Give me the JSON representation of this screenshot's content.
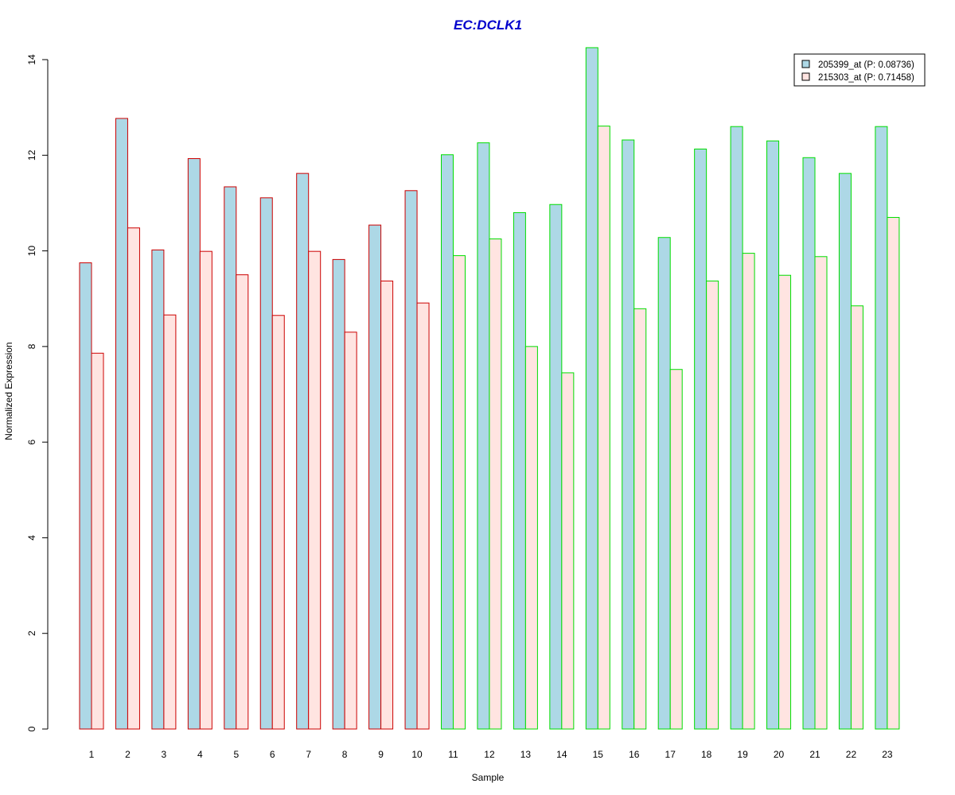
{
  "chart_data": {
    "type": "bar",
    "title": "EC:DCLK1",
    "xlabel": "Sample",
    "ylabel": "Normalized Expression",
    "ylim": [
      0,
      14
    ],
    "yticks": [
      0,
      2,
      4,
      6,
      8,
      10,
      12,
      14
    ],
    "categories": [
      "1",
      "2",
      "3",
      "4",
      "5",
      "6",
      "7",
      "8",
      "9",
      "10",
      "11",
      "12",
      "13",
      "14",
      "15",
      "16",
      "17",
      "18",
      "19",
      "20",
      "21",
      "22",
      "23"
    ],
    "series": [
      {
        "name": "205399_at (P: 0.08736)",
        "fill": "#ADD8E6",
        "values": [
          9.75,
          12.77,
          10.02,
          11.93,
          11.34,
          11.11,
          11.62,
          9.82,
          10.54,
          11.26,
          12.01,
          12.26,
          10.8,
          10.97,
          14.25,
          12.32,
          10.28,
          12.13,
          12.6,
          12.3,
          11.95,
          11.62,
          12.6
        ]
      },
      {
        "name": "215303_at (P: 0.71458)",
        "fill": "#FFE4E1",
        "values": [
          7.86,
          10.48,
          8.66,
          9.99,
          9.5,
          8.65,
          9.99,
          8.3,
          9.37,
          8.91,
          9.9,
          10.25,
          8.0,
          7.45,
          12.61,
          8.79,
          7.52,
          9.37,
          9.95,
          9.49,
          9.88,
          8.85,
          10.7
        ]
      }
    ],
    "group_borders": [
      "#CC0000",
      "#CC0000",
      "#CC0000",
      "#CC0000",
      "#CC0000",
      "#CC0000",
      "#CC0000",
      "#CC0000",
      "#CC0000",
      "#CC0000",
      "#00DD00",
      "#00DD00",
      "#00DD00",
      "#00DD00",
      "#00DD00",
      "#00DD00",
      "#00DD00",
      "#00DD00",
      "#00DD00",
      "#00DD00",
      "#00DD00",
      "#00DD00",
      "#00DD00"
    ],
    "title_color": "#0000CC",
    "legend_position": "top-right",
    "grid": false
  }
}
